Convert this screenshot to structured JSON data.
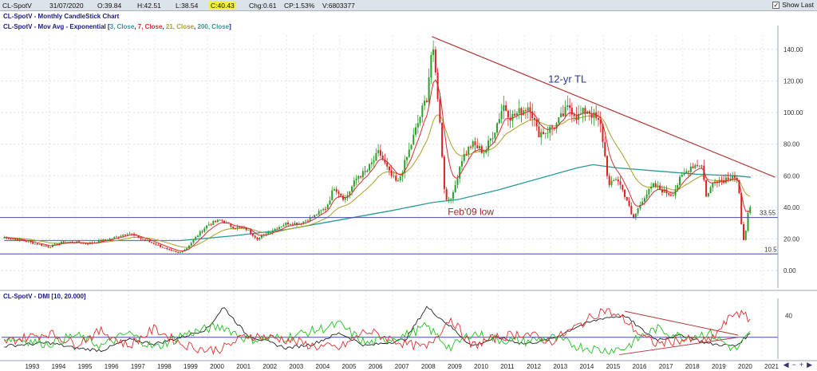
{
  "header": {
    "symbol": "CL-SpotV",
    "date": "31/07/2020",
    "open": "O:39.84",
    "high": "H:42.51",
    "low": "L:38.54",
    "close": "C:40.43",
    "change": "Chg:0.61",
    "change_pct": "CP:1.53%",
    "volume": "V:6803377",
    "show_last": "Show Last"
  },
  "legend": {
    "title": "CL-SpotV - Monthly CandleStick Chart",
    "mov_avg_prefix": "CL-SpotV - Mov Avg - Exponential [",
    "ma3": "3, Close",
    "ma7": "7, Close",
    "ma21": "21, Close",
    "ma200": "200, Close",
    "mov_avg_suffix": "]",
    "dmi": "CL-SpotV - DMI [10, 20.000]"
  },
  "annotations": {
    "trendline_label": "12-yr TL",
    "support_label": "Feb'09 low",
    "support_value": "33.55",
    "low_value": "10.5"
  },
  "colors": {
    "candle_up": "#2aa02a",
    "candle_down": "#e02020",
    "ma_fast": "#d62f2f",
    "ma_21": "#a8a02a",
    "ma_200": "#2a9a9a",
    "trendline": "#b03a3a",
    "hline": "#4a4aa0",
    "dmi_plus": "#22c022",
    "dmi_minus": "#e03030",
    "adx": "#222222"
  },
  "chart_data": [
    {
      "type": "line",
      "title": "CL-SpotV - Monthly CandleStick Chart",
      "x_years": [
        "1993",
        "1994",
        "1995",
        "1996",
        "1997",
        "1998",
        "1999",
        "2000",
        "2001",
        "2002",
        "2003",
        "2004",
        "2005",
        "2006",
        "2007",
        "2008",
        "2009",
        "2010",
        "2011",
        "2012",
        "2013",
        "2014",
        "2015",
        "2016",
        "2017",
        "2018",
        "2019",
        "2020",
        "2021"
      ],
      "y_ticks": [
        "140.00",
        "120.00",
        "100.00",
        "80.00",
        "60.00",
        "40.00",
        "20.00",
        "0.00"
      ],
      "ylim": [
        -5,
        150
      ],
      "xlim": [
        1992.2,
        2021.6
      ],
      "series": [
        {
          "name": "Close",
          "x": [
            1992.3,
            1993.0,
            1993.5,
            1994.0,
            1994.5,
            1995.0,
            1995.5,
            1996.0,
            1996.5,
            1997.0,
            1997.5,
            1998.0,
            1998.5,
            1998.9,
            1999.2,
            1999.5,
            2000.0,
            2000.5,
            2000.9,
            2001.5,
            2001.9,
            2002.5,
            2003.0,
            2003.5,
            2004.0,
            2004.5,
            2004.8,
            2005.2,
            2005.7,
            2006.0,
            2006.5,
            2006.9,
            2007.2,
            2007.6,
            2008.0,
            2008.3,
            2008.5,
            2008.7,
            2008.9,
            2009.0,
            2009.3,
            2009.6,
            2010.0,
            2010.5,
            2010.9,
            2011.2,
            2011.5,
            2011.8,
            2012.2,
            2012.5,
            2012.8,
            2013.2,
            2013.7,
            2014.0,
            2014.4,
            2014.7,
            2014.9,
            2015.2,
            2015.5,
            2015.9,
            2016.1,
            2016.5,
            2016.9,
            2017.3,
            2017.6,
            2017.9,
            2018.3,
            2018.7,
            2018.9,
            2019.2,
            2019.5,
            2019.9,
            2020.1,
            2020.25,
            2020.33,
            2020.45,
            2020.58
          ],
          "values": [
            21,
            19,
            17,
            15,
            18,
            18,
            17,
            19,
            21,
            24,
            20,
            17,
            13,
            11,
            14,
            20,
            29,
            32,
            28,
            26,
            20,
            26,
            30,
            30,
            34,
            40,
            53,
            45,
            60,
            62,
            75,
            61,
            55,
            74,
            95,
            110,
            142,
            115,
            70,
            44,
            48,
            70,
            80,
            75,
            90,
            105,
            97,
            100,
            105,
            87,
            88,
            92,
            104,
            97,
            102,
            96,
            91,
            53,
            59,
            44,
            32,
            46,
            54,
            50,
            48,
            58,
            66,
            68,
            46,
            58,
            57,
            61,
            55,
            21,
            19,
            35,
            40
          ]
        },
        {
          "name": "EMA 200",
          "x": [
            1992.3,
            1996.0,
            1999.0,
            2001.0,
            2003.0,
            2005.0,
            2007.0,
            2008.5,
            2009.5,
            2011.0,
            2012.5,
            2014.0,
            2014.6,
            2015.5,
            2017.0,
            2018.5,
            2020.0,
            2020.58
          ],
          "values": [
            19,
            19,
            19,
            22,
            26,
            32,
            38,
            43,
            45,
            51,
            58,
            65,
            67,
            65,
            63,
            61,
            60,
            59
          ]
        }
      ],
      "annotations": {
        "trendline": {
          "from": [
            2008.5,
            148
          ],
          "to": [
            2021.5,
            59
          ]
        },
        "hlines": [
          33.55,
          10.5
        ]
      }
    },
    {
      "type": "line",
      "title": "CL-SpotV - DMI [10, 20.000]",
      "y_ticks": [
        "40"
      ],
      "ylim": [
        0,
        50
      ],
      "series": [
        {
          "name": "ADX",
          "x": [
            1992.3,
            1994,
            1995,
            1996,
            1997,
            1998,
            1999,
            2000,
            2000.6,
            2001.5,
            2003,
            2004,
            2005,
            2006,
            2007.5,
            2008.3,
            2009.2,
            2010,
            2011,
            2012,
            2013,
            2014,
            2015,
            2015.8,
            2016.5,
            2017,
            2018,
            2019,
            2020,
            2020.58
          ],
          "values": [
            12,
            15,
            10,
            8,
            18,
            14,
            20,
            28,
            48,
            22,
            10,
            14,
            24,
            12,
            18,
            48,
            30,
            12,
            20,
            14,
            18,
            30,
            38,
            40,
            26,
            18,
            22,
            14,
            12,
            24
          ]
        },
        {
          "name": "+DI",
          "x": [
            1992.3,
            1994,
            1995,
            1996,
            1997,
            1998,
            1999,
            2000,
            2000.6,
            2001.5,
            2003,
            2004,
            2005,
            2006,
            2007.5,
            2008.3,
            2009.2,
            2010,
            2011,
            2012,
            2013,
            2014,
            2015,
            2015.8,
            2016.5,
            2017,
            2018,
            2019,
            2020,
            2020.58
          ],
          "values": [
            20,
            14,
            22,
            12,
            24,
            10,
            22,
            28,
            30,
            18,
            20,
            26,
            32,
            14,
            22,
            30,
            10,
            24,
            18,
            16,
            20,
            12,
            8,
            10,
            22,
            28,
            20,
            24,
            8,
            24
          ]
        },
        {
          "name": "-DI",
          "x": [
            1992.3,
            1994,
            1995,
            1996,
            1997,
            1998,
            1999,
            2000,
            2000.6,
            2001.5,
            2003,
            2004,
            2005,
            2006,
            2007.5,
            2008.3,
            2009.2,
            2010,
            2011,
            2012,
            2013,
            2014,
            2015,
            2015.8,
            2016.5,
            2017,
            2018,
            2019,
            2020,
            2020.58
          ],
          "values": [
            16,
            24,
            14,
            26,
            12,
            28,
            14,
            8,
            10,
            22,
            18,
            12,
            10,
            26,
            14,
            10,
            38,
            12,
            20,
            24,
            16,
            30,
            46,
            36,
            20,
            14,
            18,
            16,
            44,
            36
          ]
        }
      ],
      "annotations": {
        "hline": 20
      }
    }
  ]
}
